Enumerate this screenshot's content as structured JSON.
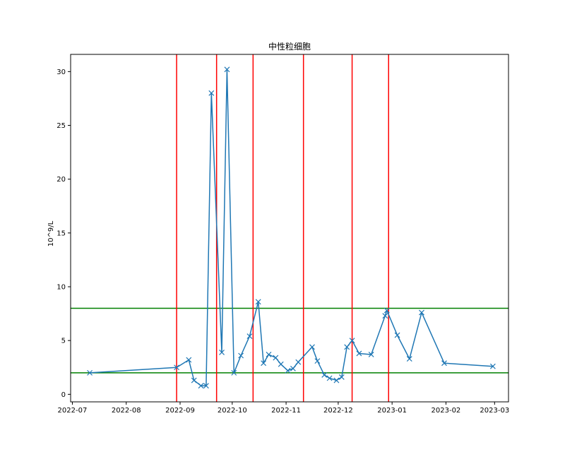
{
  "chart_data": {
    "type": "line",
    "title": "中性粒细胞",
    "xlabel": "",
    "ylabel": "10^9/L",
    "xlim": [
      "2022-06-30",
      "2023-03-09"
    ],
    "ylim": [
      -0.7,
      31.6
    ],
    "x_ticks": [
      "2022-07",
      "2022-08",
      "2022-09",
      "2022-10",
      "2022-11",
      "2022-12",
      "2023-01",
      "2023-02",
      "2023-03"
    ],
    "x_tick_dates": [
      "2022-07-01",
      "2022-08-01",
      "2022-09-01",
      "2022-10-01",
      "2022-11-01",
      "2022-12-01",
      "2023-01-01",
      "2023-02-01",
      "2023-03-01"
    ],
    "y_ticks": [
      0,
      5,
      10,
      15,
      20,
      25,
      30
    ],
    "grid": false,
    "series": [
      {
        "color": "#1f77b4",
        "marker": "x",
        "x": [
          "2022-07-11",
          "2022-08-30",
          "2022-09-06",
          "2022-09-09",
          "2022-09-13",
          "2022-09-16",
          "2022-09-19",
          "2022-09-25",
          "2022-09-28",
          "2022-10-02",
          "2022-10-06",
          "2022-10-11",
          "2022-10-16",
          "2022-10-19",
          "2022-10-22",
          "2022-10-26",
          "2022-10-29",
          "2022-11-02",
          "2022-11-05",
          "2022-11-08",
          "2022-11-16",
          "2022-11-19",
          "2022-11-23",
          "2022-11-26",
          "2022-11-30",
          "2022-12-03",
          "2022-12-06",
          "2022-12-09",
          "2022-12-13",
          "2022-12-20",
          "2022-12-28",
          "2022-12-29",
          "2023-01-04",
          "2023-01-11",
          "2023-01-18",
          "2023-01-31",
          "2023-02-28"
        ],
        "y": [
          2.0,
          2.5,
          3.2,
          1.3,
          0.8,
          0.8,
          28.0,
          3.9,
          30.2,
          2.0,
          3.6,
          5.4,
          8.6,
          2.9,
          3.7,
          3.4,
          2.8,
          2.2,
          2.4,
          3.0,
          4.4,
          3.1,
          1.8,
          1.5,
          1.3,
          1.6,
          4.4,
          5.0,
          3.8,
          3.7,
          7.3,
          7.8,
          5.5,
          3.3,
          7.6,
          2.9,
          2.6
        ]
      }
    ],
    "reference_lines_horizontal": [
      {
        "y": 8,
        "color": "#008000"
      },
      {
        "y": 2,
        "color": "#008000"
      }
    ],
    "reference_lines_vertical": [
      {
        "x": "2022-08-30",
        "color": "#ff0000"
      },
      {
        "x": "2022-09-22",
        "color": "#ff0000"
      },
      {
        "x": "2022-10-13",
        "color": "#ff0000"
      },
      {
        "x": "2022-11-11",
        "color": "#ff0000"
      },
      {
        "x": "2022-12-09",
        "color": "#ff0000"
      },
      {
        "x": "2022-12-30",
        "color": "#ff0000"
      }
    ]
  }
}
